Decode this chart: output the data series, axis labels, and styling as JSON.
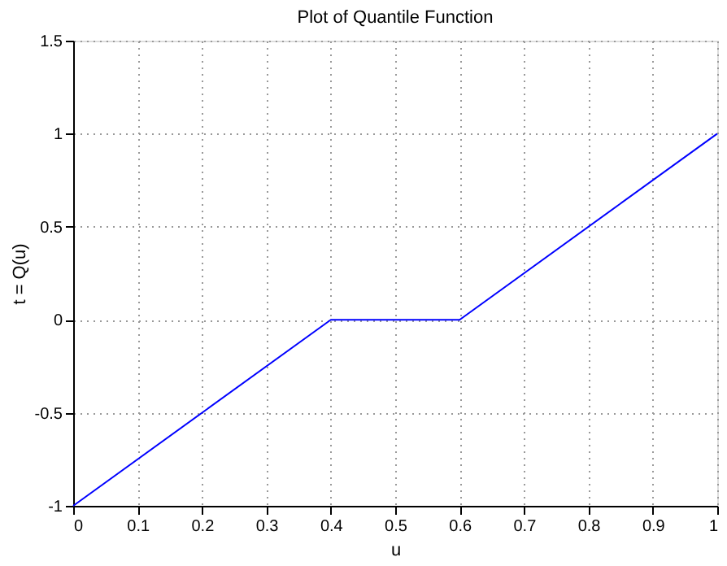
{
  "chart_data": {
    "type": "line",
    "title": "Plot of Quantile Function",
    "xlabel": "u",
    "ylabel": "t = Q(u)",
    "x": [
      0,
      0.4,
      0.6,
      1
    ],
    "series": [
      {
        "color": "#0000ff",
        "values": [
          -1,
          0,
          0,
          1
        ]
      }
    ],
    "xlim": [
      0,
      1
    ],
    "xticks": [
      0,
      0.1,
      0.2,
      0.3,
      0.4,
      0.5,
      0.6,
      0.7,
      0.8,
      0.9,
      1
    ],
    "ylim": [
      -1,
      1.5
    ],
    "yticks": [
      -1,
      -0.5,
      0,
      0.5,
      1,
      1.5
    ],
    "grid": true,
    "line_style": "solid"
  }
}
